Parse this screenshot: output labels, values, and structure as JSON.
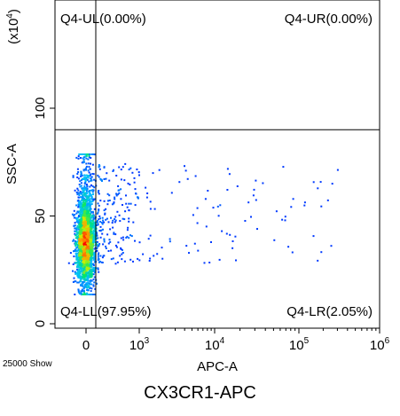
{
  "chart_data": {
    "type": "scatter",
    "title": "CX3CR1-APC",
    "xlabel": "APC-A",
    "ylabel": "SSC-A",
    "y_scale_label": "(x10^4)",
    "x_scale": "biexponential",
    "xlim": [
      -2,
      6
    ],
    "ylim": [
      0,
      145
    ],
    "x_ticks": [
      {
        "value": 0,
        "label": "0"
      },
      {
        "value": 3,
        "label": "10",
        "exp": "3"
      },
      {
        "value": 4,
        "label": "10",
        "exp": "4"
      },
      {
        "value": 5,
        "label": "10",
        "exp": "5"
      },
      {
        "value": 6,
        "label": "10",
        "exp": "6"
      }
    ],
    "y_ticks": [
      0,
      50,
      100
    ],
    "gate": {
      "x": 0.55,
      "y": 90
    },
    "quadrants": {
      "UL": "Q4-UL(0.00%)",
      "UR": "Q4-UR(0.00%)",
      "LL": "Q4-LL(97.95%)",
      "LR": "Q4-LR(2.05%)"
    },
    "events_label": "25000 Show",
    "population": {
      "main": {
        "x_center": -0.1,
        "x_sd": 0.28,
        "y_center": 36,
        "y_sd": 10
      },
      "tail_x_range": [
        0.6,
        5.5
      ],
      "tail_y_range": [
        28,
        75
      ]
    },
    "colors": {
      "density_high": "#ff0000",
      "density_low": "#0000ff",
      "axis": "#000000"
    }
  }
}
